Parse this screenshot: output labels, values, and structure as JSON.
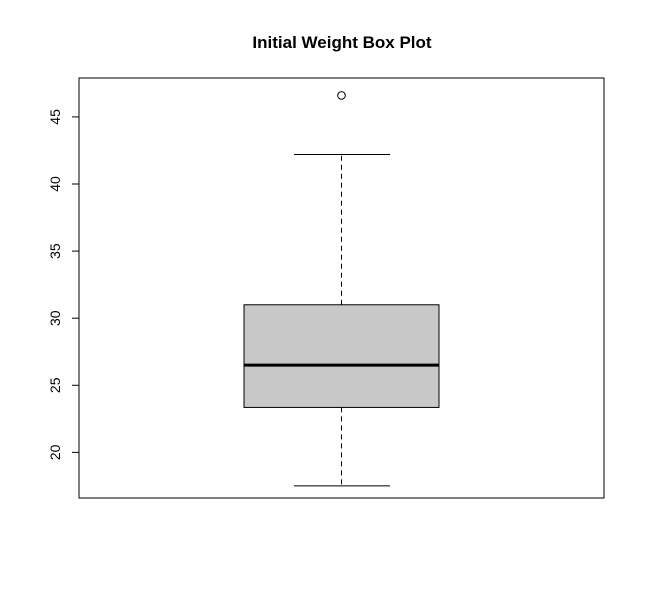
{
  "chart_data": {
    "type": "box",
    "title": "Initial Weight Box Plot",
    "xlabel": "",
    "ylabel": "",
    "ylim": [
      16.6,
      47.9
    ],
    "yticks": [
      20,
      25,
      30,
      35,
      40,
      45
    ],
    "ytick_labels": [
      "20",
      "25",
      "30",
      "35",
      "40",
      "45"
    ],
    "grid": false,
    "legend": "none",
    "box": {
      "whisker_low": 17.5,
      "q1": 23.35,
      "median": 26.5,
      "q3": 31.0,
      "whisker_high": 42.2,
      "outliers": [
        46.6
      ]
    },
    "colors": {
      "box_fill": "#c8c8c8",
      "stroke": "#000000"
    }
  }
}
